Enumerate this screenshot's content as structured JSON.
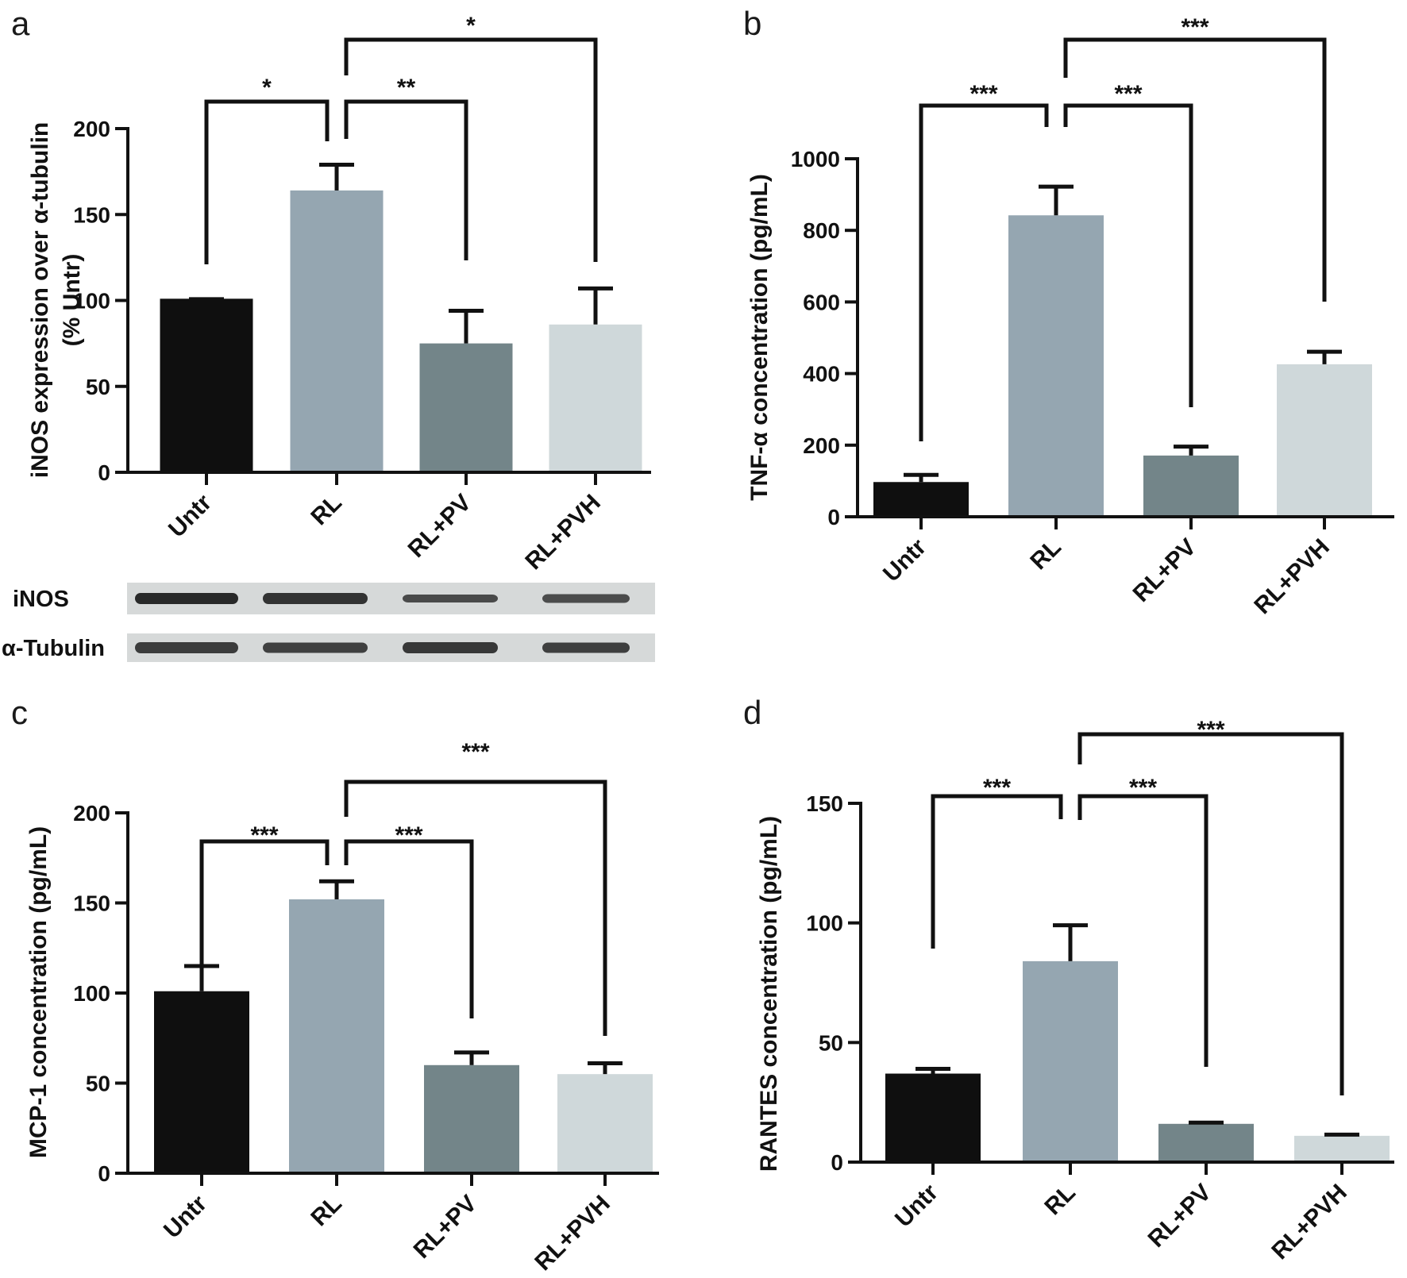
{
  "chart_data": [
    {
      "type": "bar",
      "panel": "a",
      "categories": [
        "Untr",
        "RL",
        "RL+PV",
        "RL+PVH"
      ],
      "values": [
        101,
        164,
        75,
        86
      ],
      "errors": [
        0,
        15,
        19,
        21
      ],
      "colors": [
        "#0f0f0f",
        "#95a6b1",
        "#738589",
        "#cfd8da"
      ],
      "ylabel": "iNOS expression over α-tubulin",
      "ylabel2": "(% Untr)",
      "ylim": [
        0,
        200
      ],
      "yticks": [
        0,
        50,
        100,
        150,
        200
      ],
      "grid": false,
      "annotations": [
        {
          "from": 0,
          "to": 1,
          "text": "*"
        },
        {
          "from": 1,
          "to": 2,
          "text": "**"
        },
        {
          "from": 1,
          "to": 3,
          "text": "*"
        }
      ],
      "blot": {
        "rows": [
          "iNOS",
          "α-Tubulin"
        ]
      }
    },
    {
      "type": "bar",
      "panel": "b",
      "categories": [
        "Untr",
        "RL",
        "RL+PV",
        "RL+PVH"
      ],
      "values": [
        97,
        842,
        171,
        426
      ],
      "errors": [
        20,
        80,
        25,
        35
      ],
      "colors": [
        "#0f0f0f",
        "#95a6b1",
        "#738589",
        "#cfd8da"
      ],
      "ylabel": "TNF-α concentration (pg/mL)",
      "ylim": [
        0,
        1000
      ],
      "yticks": [
        0,
        200,
        400,
        600,
        800,
        1000
      ],
      "grid": false,
      "annotations": [
        {
          "from": 0,
          "to": 1,
          "text": "***"
        },
        {
          "from": 1,
          "to": 2,
          "text": "***"
        },
        {
          "from": 1,
          "to": 3,
          "text": "***"
        }
      ]
    },
    {
      "type": "bar",
      "panel": "c",
      "categories": [
        "Untr",
        "RL",
        "RL+PV",
        "RL+PVH"
      ],
      "values": [
        101,
        152,
        60,
        55
      ],
      "errors": [
        14,
        10,
        7,
        6
      ],
      "colors": [
        "#0f0f0f",
        "#95a6b1",
        "#738589",
        "#cfd8da"
      ],
      "ylabel": "MCP-1 concentration (pg/mL)",
      "ylim": [
        0,
        200
      ],
      "yticks": [
        0,
        50,
        100,
        150,
        200
      ],
      "grid": false,
      "annotations": [
        {
          "from": 0,
          "to": 1,
          "text": "***"
        },
        {
          "from": 1,
          "to": 2,
          "text": "***"
        },
        {
          "from": 1,
          "to": 3,
          "text": "***"
        }
      ]
    },
    {
      "type": "bar",
      "panel": "d",
      "categories": [
        "Untr",
        "RL",
        "RL+PV",
        "RL+PVH"
      ],
      "values": [
        37,
        84,
        16,
        11
      ],
      "errors": [
        2,
        15,
        0.5,
        0.5
      ],
      "colors": [
        "#0f0f0f",
        "#95a6b1",
        "#738589",
        "#cfd8da"
      ],
      "ylabel": "RANTES concentration (pg/mL)",
      "ylim": [
        0,
        150
      ],
      "yticks": [
        0,
        50,
        100,
        150
      ],
      "grid": false,
      "annotations": [
        {
          "from": 0,
          "to": 1,
          "text": "***"
        },
        {
          "from": 1,
          "to": 2,
          "text": "***"
        },
        {
          "from": 1,
          "to": 3,
          "text": "***"
        }
      ]
    }
  ]
}
